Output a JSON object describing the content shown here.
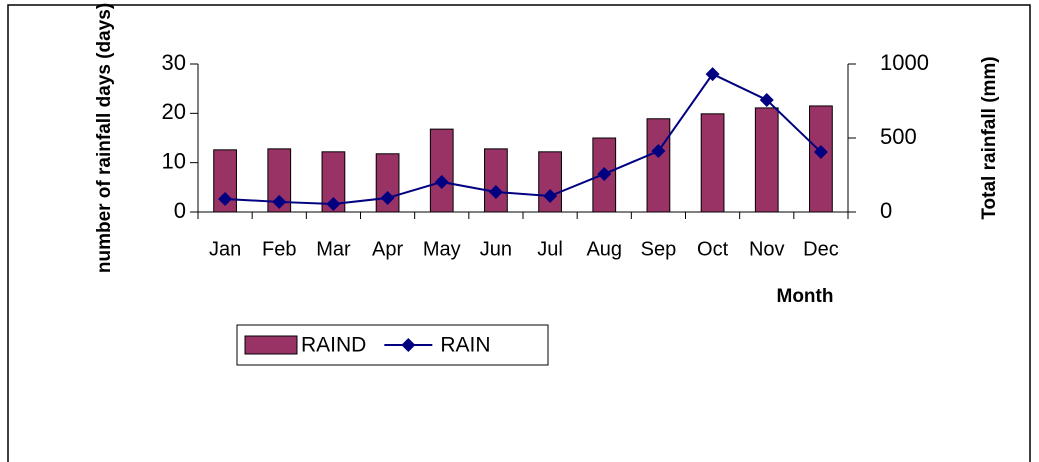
{
  "chart_data": {
    "type": "bar",
    "categories": [
      "Jan",
      "Feb",
      "Mar",
      "Apr",
      "May",
      "Jun",
      "Jul",
      "Aug",
      "Sep",
      "Oct",
      "Nov",
      "Dec"
    ],
    "series": [
      {
        "name": "RAIND",
        "type": "bar",
        "color": "#993366",
        "values": [
          12.6,
          12.8,
          12.2,
          11.8,
          16.8,
          12.8,
          12.2,
          15,
          18.9,
          19.9,
          21.1,
          21.5
        ]
      },
      {
        "name": "RAIN",
        "type": "line",
        "axis": "y2",
        "color": "#000080",
        "values": [
          88,
          68,
          54,
          95,
          203,
          135,
          108,
          257,
          412,
          932,
          757,
          405
        ]
      }
    ],
    "y_label": "number of rainfall days (days)",
    "y2_label": "Total rainfall (mm)",
    "x_label": "Month",
    "ylim": [
      0,
      30
    ],
    "yticks": [
      0,
      10,
      20,
      30
    ],
    "y2lim": [
      0,
      1000
    ],
    "y2ticks": [
      0,
      500,
      1000
    ],
    "legend": "bottom-left"
  }
}
